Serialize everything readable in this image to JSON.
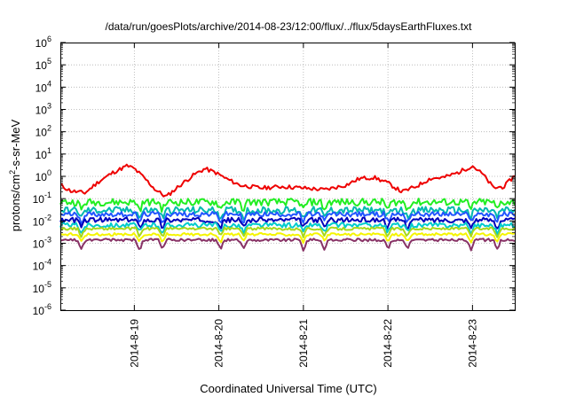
{
  "chart_data": {
    "type": "line",
    "title": "/data/run/goesPlots/archive/2014-08-23/12:00/flux/../flux/5daysEarthFluxes.txt",
    "xlabel": "Coordinated Universal Time (UTC)",
    "ylabel": {
      "prefix": "protons/cm",
      "superscript": "2",
      "suffix": "-s-sr-MeV"
    },
    "y_scale": "log",
    "y_ticks": [
      -6,
      -5,
      -4,
      -3,
      -2,
      -1,
      0,
      1,
      2,
      3,
      4,
      5,
      6
    ],
    "y_tick_base": "10",
    "ylim": [
      1e-06,
      1000000
    ],
    "xlim": [
      "2014-08-18 03:00",
      "2014-08-23 12:00"
    ],
    "x_ticks": [
      "2014-8-19",
      "2014-8-20",
      "2014-8-21",
      "2014-8-22",
      "2014-8-23"
    ],
    "grid": true,
    "series": [
      {
        "color": "#ee0000",
        "anchors": [
          [
            "2014-08-18 03:00",
            0.4
          ],
          [
            "2014-08-18 06:00",
            0.22
          ],
          [
            "2014-08-18 10:00",
            0.18
          ],
          [
            "2014-08-18 14:00",
            0.6
          ],
          [
            "2014-08-18 18:00",
            1.5
          ],
          [
            "2014-08-18 22:00",
            3.0
          ],
          [
            "2014-08-19 00:00",
            2.2
          ],
          [
            "2014-08-19 03:00",
            0.8
          ],
          [
            "2014-08-19 06:00",
            0.25
          ],
          [
            "2014-08-19 09:00",
            0.12
          ],
          [
            "2014-08-19 13:00",
            0.4
          ],
          [
            "2014-08-19 17:00",
            1.2
          ],
          [
            "2014-08-19 20:00",
            2.2
          ],
          [
            "2014-08-19 23:00",
            1.5
          ],
          [
            "2014-08-20 02:00",
            0.8
          ],
          [
            "2014-08-20 06:00",
            0.4
          ],
          [
            "2014-08-20 12:00",
            0.3
          ],
          [
            "2014-08-20 18:00",
            0.35
          ],
          [
            "2014-08-21 00:00",
            0.3
          ],
          [
            "2014-08-21 06:00",
            0.25
          ],
          [
            "2014-08-21 12:00",
            0.4
          ],
          [
            "2014-08-21 16:00",
            0.8
          ],
          [
            "2014-08-21 20:00",
            0.9
          ],
          [
            "2014-08-22 00:00",
            0.5
          ],
          [
            "2014-08-22 04:00",
            0.2
          ],
          [
            "2014-08-22 08:00",
            0.35
          ],
          [
            "2014-08-22 12:00",
            0.8
          ],
          [
            "2014-08-22 16:00",
            0.9
          ],
          [
            "2014-08-22 20:00",
            1.5
          ],
          [
            "2014-08-23 00:00",
            3.0
          ],
          [
            "2014-08-23 03:00",
            1.2
          ],
          [
            "2014-08-23 06:00",
            0.3
          ],
          [
            "2014-08-23 09:00",
            0.35
          ],
          [
            "2014-08-23 12:00",
            1.1
          ]
        ]
      },
      {
        "color": "#22ee22",
        "base": 0.07
      },
      {
        "color": "#00b8b0",
        "base": 0.03
      },
      {
        "color": "#2255ff",
        "base": 0.02
      },
      {
        "color": "#0000bb",
        "base": 0.011
      },
      {
        "color": "#00cccc",
        "base": 0.0065
      },
      {
        "color": "#a8d81a",
        "base": 0.0045
      },
      {
        "color": "#f5f500",
        "base": 0.0025
      },
      {
        "color": "#883366",
        "base": 0.0014
      }
    ],
    "dips_at": [
      "2014-08-18 09:00",
      "2014-08-19 01:30",
      "2014-08-19 08:00",
      "2014-08-20 00:30",
      "2014-08-20 07:00",
      "2014-08-21 00:00",
      "2014-08-21 06:00",
      "2014-08-22 00:00",
      "2014-08-22 05:30",
      "2014-08-22 23:30",
      "2014-08-23 07:00"
    ]
  }
}
